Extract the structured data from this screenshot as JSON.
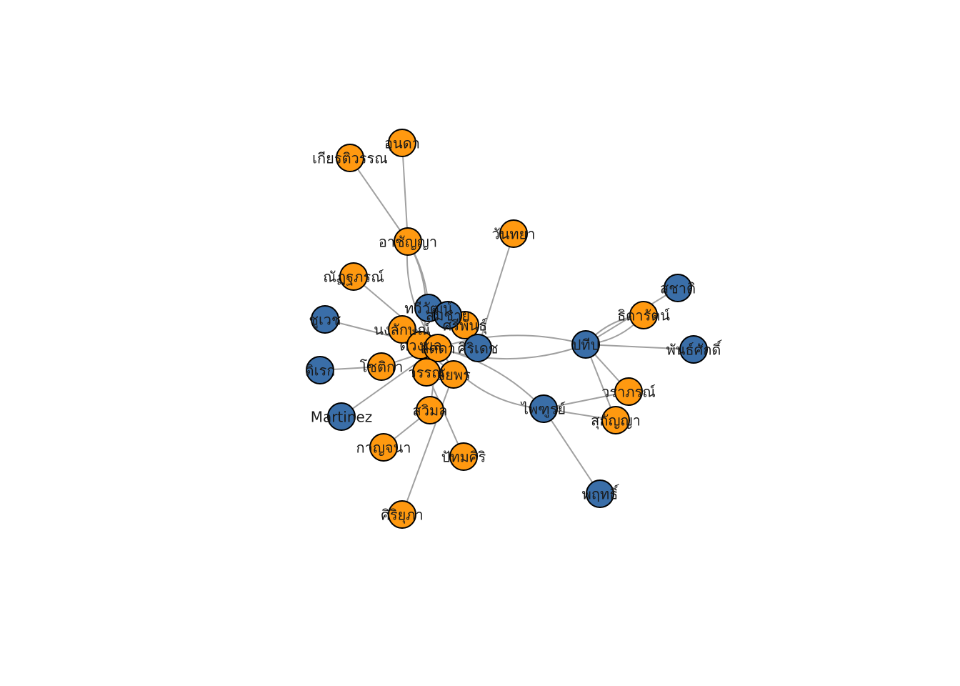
{
  "colors": {
    "orange": "#FF9910",
    "blue": "#3A6EA8",
    "edge": "#A0A0A0",
    "outline": "#000000"
  },
  "nodes": [
    {
      "id": "n1",
      "label": "อาชัญญา",
      "color": "orange"
    },
    {
      "id": "n2",
      "label": "อุนดา",
      "color": "orange"
    },
    {
      "id": "n3",
      "label": "เกียรติวรรณ",
      "color": "orange"
    },
    {
      "id": "n4",
      "label": "วันทยา",
      "color": "orange"
    },
    {
      "id": "n5",
      "label": "ณัฏฐภรณ์",
      "color": "orange"
    },
    {
      "id": "n6",
      "label": "ทวีวัฒน์",
      "color": "blue"
    },
    {
      "id": "n7",
      "label": "ชูเวช",
      "color": "blue"
    },
    {
      "id": "n8",
      "label": "ดิเรก",
      "color": "blue"
    },
    {
      "id": "n9",
      "label": "Martinez",
      "color": "blue"
    },
    {
      "id": "n10",
      "label": "นงลักษณ์",
      "color": "orange"
    },
    {
      "id": "n11",
      "label": "โชติกา",
      "color": "orange"
    },
    {
      "id": "n12",
      "label": "ดวงมล",
      "color": "orange"
    },
    {
      "id": "n13",
      "label": "ศรีพันธุ์",
      "color": "orange"
    },
    {
      "id": "n14",
      "label": "สมชาย",
      "color": "blue"
    },
    {
      "id": "n15",
      "label": "ศิริเดช",
      "color": "blue"
    },
    {
      "id": "n16",
      "label": "ลัดดา",
      "color": "orange"
    },
    {
      "id": "n17",
      "label": "วรรณ",
      "color": "orange"
    },
    {
      "id": "n18",
      "label": "อัยพร",
      "color": "orange"
    },
    {
      "id": "n19",
      "label": "สวิมล",
      "color": "orange"
    },
    {
      "id": "n20",
      "label": "กาญจนา",
      "color": "orange"
    },
    {
      "id": "n21",
      "label": "ปัทมศิริ",
      "color": "orange"
    },
    {
      "id": "n22",
      "label": "ศิริยุภา",
      "color": "orange"
    },
    {
      "id": "n23",
      "label": "ปทีป",
      "color": "blue"
    },
    {
      "id": "n24",
      "label": "สุชาติ",
      "color": "blue"
    },
    {
      "id": "n25",
      "label": "ธิดารัตน์",
      "color": "orange"
    },
    {
      "id": "n26",
      "label": "พันธ์ศักดิ์",
      "color": "blue"
    },
    {
      "id": "n27",
      "label": "วราภรณ์",
      "color": "orange"
    },
    {
      "id": "n28",
      "label": "สุกัญญา",
      "color": "orange"
    },
    {
      "id": "n29",
      "label": "ไพฑูรย์",
      "color": "blue"
    },
    {
      "id": "n30",
      "label": "พฤทธิ์",
      "color": "blue"
    }
  ],
  "edges": [
    {
      "from": "n3",
      "to": "n1"
    },
    {
      "from": "n2",
      "to": "n1"
    },
    {
      "from": "n1",
      "to": "n6",
      "curve": -12
    },
    {
      "from": "n1",
      "to": "n16",
      "curve": 30
    },
    {
      "from": "n1",
      "to": "n12",
      "curve": -30
    },
    {
      "from": "n4",
      "to": "n15"
    },
    {
      "from": "n5",
      "to": "n16"
    },
    {
      "from": "n7",
      "to": "n16"
    },
    {
      "from": "n8",
      "to": "n11"
    },
    {
      "from": "n11",
      "to": "n16"
    },
    {
      "from": "n9",
      "to": "n16"
    },
    {
      "from": "n20",
      "to": "n19"
    },
    {
      "from": "n22",
      "to": "n18"
    },
    {
      "from": "n21",
      "to": "n17"
    },
    {
      "from": "n19",
      "to": "n16"
    },
    {
      "from": "n10",
      "to": "n18"
    },
    {
      "from": "n12",
      "to": "n18"
    },
    {
      "from": "n17",
      "to": "n16"
    },
    {
      "from": "n16",
      "to": "n23",
      "curve": -30
    },
    {
      "from": "n16",
      "to": "n23",
      "curve": 35
    },
    {
      "from": "n16",
      "to": "n29",
      "curve": 40
    },
    {
      "from": "n16",
      "to": "n29",
      "curve": -25
    },
    {
      "from": "n23",
      "to": "n25",
      "curve": -18
    },
    {
      "from": "n23",
      "to": "n25",
      "curve": 18
    },
    {
      "from": "n23",
      "to": "n24"
    },
    {
      "from": "n23",
      "to": "n26"
    },
    {
      "from": "n23",
      "to": "n27"
    },
    {
      "from": "n23",
      "to": "n28"
    },
    {
      "from": "n29",
      "to": "n27"
    },
    {
      "from": "n29",
      "to": "n28"
    },
    {
      "from": "n29",
      "to": "n30"
    }
  ]
}
